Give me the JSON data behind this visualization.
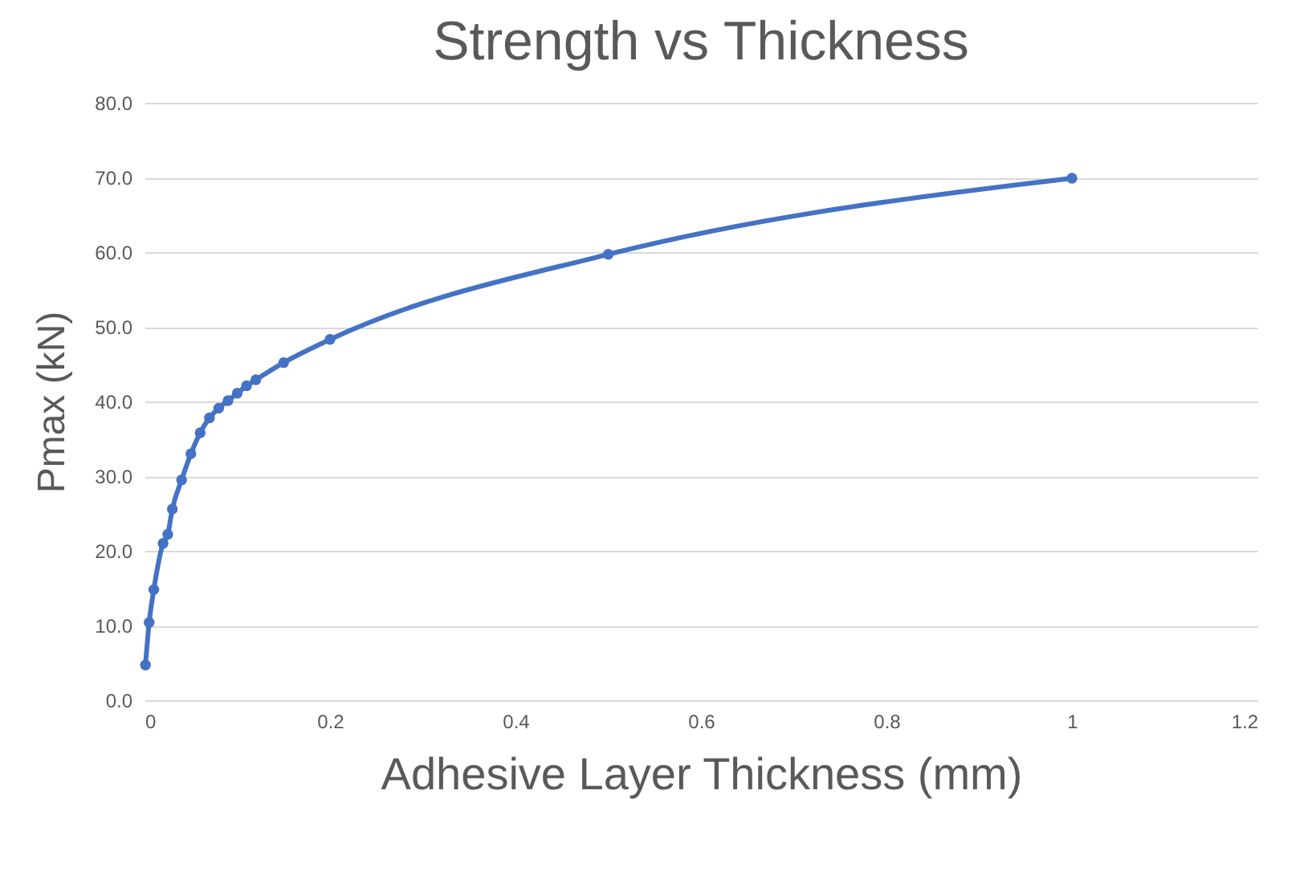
{
  "chart_data": {
    "type": "line",
    "title": "Strength vs Thickness",
    "xlabel": "Adhesive Layer Thickness (mm)",
    "ylabel": "Pmax (kN)",
    "x": [
      0.001,
      0.005,
      0.01,
      0.02,
      0.025,
      0.03,
      0.04,
      0.05,
      0.06,
      0.07,
      0.08,
      0.09,
      0.1,
      0.11,
      0.12,
      0.15,
      0.2,
      0.5,
      1
    ],
    "series": [
      {
        "color": "#4472c4",
        "values": [
          4.7,
          10.4,
          14.8,
          21.0,
          22.2,
          25.6,
          29.5,
          33.0,
          35.8,
          37.8,
          39.1,
          40.1,
          41.1,
          42.1,
          42.9,
          45.2,
          48.3,
          59.7,
          69.9
        ]
      }
    ],
    "xlim": [
      0,
      1.2
    ],
    "xticks": [
      0,
      0.2,
      0.4,
      0.6,
      0.8,
      1,
      1.2
    ],
    "ylim": [
      0,
      80
    ],
    "yticks": [
      {
        "value": 0,
        "label": "0.0"
      },
      {
        "value": 10,
        "label": "10.0"
      },
      {
        "value": 20,
        "label": "20.0"
      },
      {
        "value": 30,
        "label": "30.0"
      },
      {
        "value": 40,
        "label": "40.0"
      },
      {
        "value": 50,
        "label": "50.0"
      },
      {
        "value": 60,
        "label": "60.0"
      },
      {
        "value": 70,
        "label": "70.0"
      },
      {
        "value": 80,
        "label": "80.0"
      }
    ],
    "grid": "y",
    "marker": "circle",
    "line_style": "solid"
  }
}
